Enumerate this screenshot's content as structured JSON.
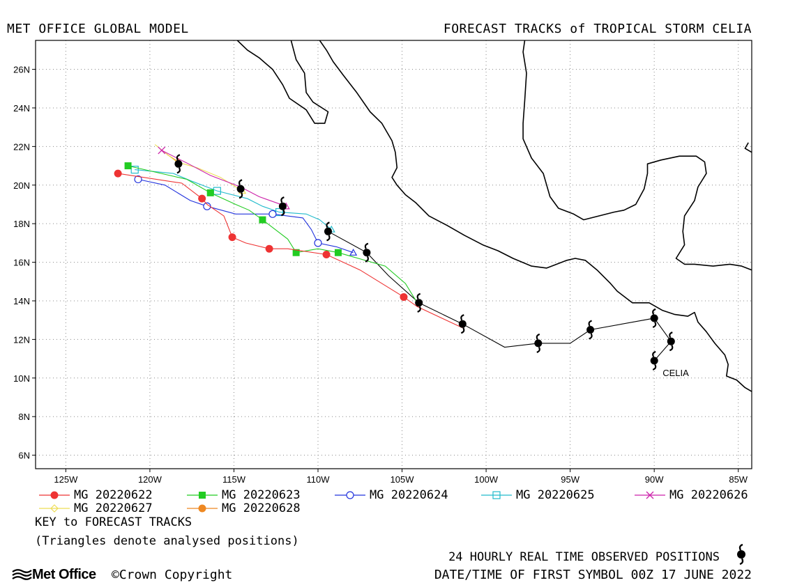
{
  "header": {
    "model_title": "MET OFFICE GLOBAL MODEL",
    "plot_title": "FORECAST TRACKS of TROPICAL STORM CELIA"
  },
  "map": {
    "lon_min": -126.8,
    "lon_max": -84.2,
    "lat_min": 5.3,
    "lat_max": 27.5,
    "lon_ticks": [
      -125,
      -120,
      -115,
      -110,
      -105,
      -100,
      -95,
      -90,
      -85
    ],
    "lon_tick_labels": [
      "125W",
      "120W",
      "115W",
      "110W",
      "105W",
      "100W",
      "95W",
      "90W",
      "85W"
    ],
    "lat_ticks": [
      6,
      8,
      10,
      12,
      14,
      16,
      18,
      20,
      22,
      24,
      26
    ],
    "lat_tick_labels": [
      "6N",
      "8N",
      "10N",
      "12N",
      "14N",
      "16N",
      "18N",
      "20N",
      "22N",
      "24N",
      "26N"
    ],
    "grid": "dotted",
    "storm_label": "CELIA",
    "coastlines": [
      [
        [
          -114.8,
          27.5
        ],
        [
          -114.2,
          27.0
        ],
        [
          -113.5,
          26.6
        ],
        [
          -112.7,
          26.0
        ],
        [
          -112.1,
          25.2
        ],
        [
          -111.7,
          24.5
        ],
        [
          -110.7,
          23.9
        ],
        [
          -110.2,
          23.2
        ],
        [
          -109.6,
          23.2
        ],
        [
          -109.4,
          23.8
        ],
        [
          -110.3,
          24.3
        ],
        [
          -110.7,
          24.8
        ],
        [
          -110.8,
          25.8
        ],
        [
          -111.3,
          26.5
        ],
        [
          -111.6,
          27.5
        ]
      ],
      [
        [
          -109.9,
          27.5
        ],
        [
          -109.5,
          27.0
        ],
        [
          -109.1,
          26.4
        ],
        [
          -108.5,
          25.7
        ],
        [
          -107.7,
          24.8
        ],
        [
          -106.9,
          23.8
        ],
        [
          -106.2,
          23.2
        ],
        [
          -105.6,
          22.3
        ],
        [
          -105.4,
          21.7
        ],
        [
          -105.3,
          20.9
        ],
        [
          -105.6,
          20.4
        ],
        [
          -105.3,
          20.0
        ],
        [
          -104.8,
          19.5
        ],
        [
          -104.2,
          19.1
        ],
        [
          -103.4,
          18.4
        ],
        [
          -102.3,
          17.9
        ],
        [
          -101.3,
          17.4
        ],
        [
          -100.2,
          16.9
        ],
        [
          -99.3,
          16.6
        ],
        [
          -98.4,
          16.2
        ],
        [
          -97.3,
          15.8
        ],
        [
          -96.4,
          15.7
        ],
        [
          -95.2,
          16.1
        ],
        [
          -94.7,
          16.2
        ],
        [
          -94.1,
          16.1
        ],
        [
          -93.4,
          15.6
        ],
        [
          -92.6,
          14.9
        ],
        [
          -92.2,
          14.5
        ],
        [
          -91.3,
          13.9
        ],
        [
          -90.3,
          13.9
        ],
        [
          -89.5,
          13.5
        ],
        [
          -88.8,
          13.3
        ],
        [
          -88.0,
          13.2
        ],
        [
          -87.6,
          13.4
        ],
        [
          -87.4,
          12.9
        ],
        [
          -86.9,
          12.4
        ],
        [
          -86.4,
          11.8
        ],
        [
          -85.8,
          11.2
        ],
        [
          -85.6,
          10.7
        ],
        [
          -85.7,
          10.1
        ],
        [
          -85.1,
          9.9
        ],
        [
          -84.6,
          9.5
        ],
        [
          -84.2,
          9.3
        ]
      ],
      [
        [
          -97.7,
          27.5
        ],
        [
          -97.8,
          26.9
        ],
        [
          -97.6,
          25.8
        ],
        [
          -97.7,
          24.4
        ],
        [
          -97.8,
          23.2
        ],
        [
          -97.8,
          22.4
        ],
        [
          -97.3,
          21.4
        ],
        [
          -96.6,
          20.6
        ],
        [
          -96.2,
          19.4
        ],
        [
          -95.7,
          18.8
        ],
        [
          -94.8,
          18.5
        ],
        [
          -94.2,
          18.2
        ],
        [
          -93.3,
          18.4
        ],
        [
          -92.4,
          18.6
        ],
        [
          -91.8,
          18.7
        ],
        [
          -91.1,
          19.0
        ],
        [
          -90.6,
          19.8
        ],
        [
          -90.4,
          20.6
        ],
        [
          -90.4,
          21.1
        ],
        [
          -89.6,
          21.3
        ],
        [
          -88.5,
          21.5
        ],
        [
          -87.5,
          21.5
        ],
        [
          -87.0,
          21.2
        ],
        [
          -86.9,
          20.6
        ],
        [
          -87.4,
          19.9
        ],
        [
          -87.6,
          19.2
        ],
        [
          -88.2,
          18.4
        ],
        [
          -88.3,
          17.6
        ],
        [
          -88.2,
          16.9
        ],
        [
          -88.7,
          16.2
        ],
        [
          -88.2,
          15.9
        ],
        [
          -87.6,
          15.9
        ],
        [
          -86.5,
          15.8
        ],
        [
          -85.5,
          15.9
        ],
        [
          -84.8,
          15.8
        ],
        [
          -84.2,
          15.6
        ]
      ],
      [
        [
          -84.2,
          21.7
        ],
        [
          -84.6,
          21.9
        ],
        [
          -84.4,
          22.2
        ]
      ]
    ],
    "best_track": [
      [
        -90.0,
        10.9
      ],
      [
        -89.0,
        11.9
      ],
      [
        -90.0,
        13.1
      ],
      [
        -93.8,
        12.5
      ],
      [
        -95.0,
        11.8
      ],
      [
        -96.9,
        11.8
      ],
      [
        -98.9,
        11.6
      ],
      [
        -101.4,
        12.8
      ],
      [
        -104.0,
        13.9
      ],
      [
        -105.8,
        15.3
      ],
      [
        -107.1,
        16.5
      ],
      [
        -109.4,
        17.6
      ]
    ],
    "observed_positions": [
      [
        -90.0,
        10.9
      ],
      [
        -89.0,
        11.9
      ],
      [
        -90.0,
        13.1
      ],
      [
        -93.8,
        12.5
      ],
      [
        -96.9,
        11.8
      ],
      [
        -101.4,
        12.8
      ],
      [
        -104.0,
        13.9
      ],
      [
        -107.1,
        16.5
      ],
      [
        -109.4,
        17.6
      ],
      [
        -112.1,
        18.9
      ],
      [
        -114.6,
        19.8
      ],
      [
        -118.3,
        21.1
      ]
    ],
    "tracks": [
      {
        "name": "MG 20220622",
        "color": "#ee3333",
        "marker": "filled-circle",
        "points": [
          [
            -101.4,
            12.6
          ],
          [
            -104.1,
            13.7
          ],
          [
            -104.9,
            14.2
          ],
          [
            -107.5,
            15.6
          ],
          [
            -109.5,
            16.4
          ],
          [
            -111.8,
            16.7
          ],
          [
            -112.9,
            16.7
          ],
          [
            -114.3,
            17.0
          ],
          [
            -115.1,
            17.3
          ],
          [
            -115.6,
            18.4
          ],
          [
            -116.6,
            19.0
          ],
          [
            -116.9,
            19.3
          ],
          [
            -118.1,
            20.1
          ],
          [
            -121.9,
            20.6
          ]
        ],
        "markers": [
          [
            -104.9,
            14.2
          ],
          [
            -109.5,
            16.4
          ],
          [
            -112.9,
            16.7
          ],
          [
            -115.1,
            17.3
          ],
          [
            -116.9,
            19.3
          ],
          [
            -121.9,
            20.6
          ]
        ]
      },
      {
        "name": "MG 20220623",
        "color": "#22cc22",
        "marker": "filled-square",
        "points": [
          [
            -104.1,
            13.9
          ],
          [
            -104.8,
            14.9
          ],
          [
            -106.0,
            15.8
          ],
          [
            -108.8,
            16.5
          ],
          [
            -110.0,
            16.7
          ],
          [
            -111.3,
            16.5
          ],
          [
            -111.8,
            17.2
          ],
          [
            -113.3,
            18.2
          ],
          [
            -114.1,
            18.7
          ],
          [
            -114.9,
            19.0
          ],
          [
            -116.4,
            19.6
          ],
          [
            -117.8,
            20.3
          ],
          [
            -121.3,
            21.0
          ]
        ],
        "markers": [
          [
            -108.8,
            16.5
          ],
          [
            -111.3,
            16.5
          ],
          [
            -113.3,
            18.2
          ],
          [
            -116.4,
            19.6
          ],
          [
            -121.3,
            21.0
          ]
        ]
      },
      {
        "name": "MG 20220624",
        "color": "#2233dd",
        "marker": "open-circle",
        "points": [
          [
            -107.9,
            16.5
          ],
          [
            -108.9,
            16.8
          ],
          [
            -110.0,
            17.0
          ],
          [
            -110.4,
            17.7
          ],
          [
            -110.9,
            18.3
          ],
          [
            -112.7,
            18.5
          ],
          [
            -114.9,
            18.5
          ],
          [
            -116.6,
            18.9
          ],
          [
            -117.6,
            19.2
          ],
          [
            -119.1,
            20.0
          ],
          [
            -120.7,
            20.3
          ]
        ],
        "markers": [
          [
            -110.0,
            17.0
          ],
          [
            -112.7,
            18.5
          ],
          [
            -116.6,
            18.9
          ],
          [
            -120.7,
            20.3
          ]
        ],
        "end_marker": [
          -107.9,
          16.5
        ]
      },
      {
        "name": "MG 20220625",
        "color": "#22bbcc",
        "marker": "open-square",
        "points": [
          [
            -109.2,
            17.7
          ],
          [
            -109.9,
            18.2
          ],
          [
            -110.7,
            18.5
          ],
          [
            -112.3,
            18.6
          ],
          [
            -113.3,
            18.9
          ],
          [
            -114.2,
            19.3
          ],
          [
            -116.0,
            19.7
          ],
          [
            -117.5,
            20.2
          ],
          [
            -118.6,
            20.6
          ],
          [
            -120.9,
            20.8
          ]
        ],
        "markers": [
          [
            -112.3,
            18.6
          ],
          [
            -116.0,
            19.7
          ],
          [
            -120.9,
            20.8
          ]
        ],
        "end_marker": [
          -109.2,
          17.7
        ]
      },
      {
        "name": "MG 20220626",
        "color": "#cc22aa",
        "marker": "cross",
        "points": [
          [
            -111.9,
            18.9
          ],
          [
            -113.5,
            19.4
          ],
          [
            -114.6,
            19.9
          ],
          [
            -116.4,
            20.5
          ],
          [
            -117.7,
            21.1
          ],
          [
            -119.3,
            21.8
          ]
        ],
        "markers": [
          [
            -119.3,
            21.8
          ]
        ],
        "end_marker": [
          -111.9,
          18.9
        ]
      },
      {
        "name": "MG 20220627",
        "color": "#eedd55",
        "marker": "open-diamond",
        "points": [
          [
            -114.5,
            19.7
          ],
          [
            -115.8,
            20.4
          ],
          [
            -117.2,
            20.9
          ],
          [
            -118.4,
            21.2
          ],
          [
            -119.7,
            22.1
          ]
        ],
        "markers": [],
        "end_marker": [
          -114.5,
          19.7
        ]
      },
      {
        "name": "MG 20220628",
        "color": "#ee8822",
        "marker": "filled-circle",
        "points": [
          [
            -118.3,
            21.2
          ],
          [
            -119.0,
            21.6
          ]
        ],
        "markers": [],
        "end_marker": [
          -118.3,
          21.2
        ]
      }
    ]
  },
  "legend": {
    "items": [
      {
        "label": "MG 20220622",
        "color": "#ee3333",
        "marker": "filled-circle"
      },
      {
        "label": "MG 20220623",
        "color": "#22cc22",
        "marker": "filled-square"
      },
      {
        "label": "MG 20220624",
        "color": "#2233dd",
        "marker": "open-circle"
      },
      {
        "label": "MG 20220625",
        "color": "#22bbcc",
        "marker": "open-square"
      },
      {
        "label": "MG 20220626",
        "color": "#cc22aa",
        "marker": "cross"
      },
      {
        "label": "MG 20220627",
        "color": "#eedd55",
        "marker": "open-diamond"
      },
      {
        "label": "MG 20220628",
        "color": "#ee8822",
        "marker": "filled-circle"
      }
    ],
    "key_title": "KEY to FORECAST TRACKS",
    "triangle_note": "(Triangles denote analysed positions)"
  },
  "footer": {
    "logo": "Met Office",
    "copyright": "©Crown Copyright",
    "observed_note": "24 HOURLY REAL TIME OBSERVED POSITIONS",
    "date_note": "DATE/TIME OF FIRST SYMBOL 00Z 17 JUNE 2022"
  }
}
